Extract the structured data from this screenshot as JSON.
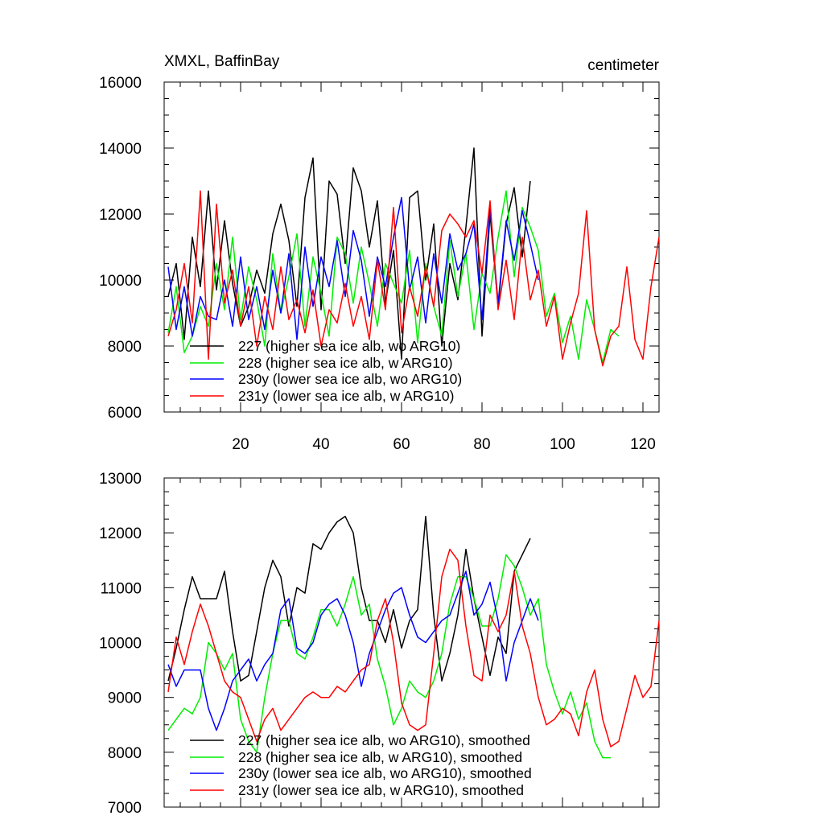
{
  "charts": [
    {
      "title": "XMXL, BaffinBay",
      "units": "centimeter",
      "type": "line",
      "xlim": [
        1,
        124
      ],
      "ylim": [
        6000,
        16000
      ],
      "ytick_labels": [
        "6000",
        "8000",
        "10000",
        "12000",
        "14000",
        "16000"
      ],
      "yticks": [
        6000,
        8000,
        10000,
        12000,
        14000,
        16000
      ],
      "xtick_labels": [
        "20",
        "40",
        "60",
        "80",
        "100",
        "120"
      ],
      "xticks": [
        20,
        40,
        60,
        80,
        100,
        120
      ],
      "legend": [
        "227 (higher sea ice alb, wo ARG10)",
        "228 (higher sea ice alb, w ARG10)",
        "230y (lower sea ice alb, wo ARG10)",
        "231y (lower sea ice alb, w ARG10)"
      ]
    },
    {
      "title": "",
      "units": "",
      "type": "line",
      "xlim": [
        1,
        124
      ],
      "ylim": [
        7000,
        13000
      ],
      "ytick_labels": [
        "7000",
        "8000",
        "9000",
        "10000",
        "11000",
        "12000",
        "13000"
      ],
      "yticks": [
        7000,
        8000,
        9000,
        10000,
        11000,
        12000,
        13000
      ],
      "xtick_labels": [],
      "xticks": [
        20,
        40,
        60,
        80,
        100,
        120
      ],
      "legend": [
        "227 (higher sea ice alb, wo ARG10), smoothed",
        "228 (higher sea ice alb, w ARG10), smoothed",
        "230y (lower sea ice alb, wo ARG10), smoothed",
        "231y (lower sea ice alb, w ARG10), smoothed"
      ]
    }
  ],
  "chart_data": [
    {
      "type": "line",
      "title": "XMXL, BaffinBay",
      "ylabel": "centimeter",
      "xlim": [
        1,
        124
      ],
      "ylim": [
        6000,
        16000
      ],
      "series": [
        {
          "name": "227 (higher sea ice alb, wo ARG10)",
          "color": "#000000",
          "x": [
            2,
            4,
            6,
            8,
            10,
            12,
            14,
            16,
            18,
            20,
            22,
            24,
            26,
            28,
            30,
            32,
            34,
            36,
            38,
            40,
            42,
            44,
            46,
            48,
            50,
            52,
            54,
            56,
            58,
            60,
            62,
            64,
            66,
            68,
            70,
            72,
            74,
            76,
            78,
            80,
            82,
            84,
            86,
            88,
            90,
            92
          ],
          "values": [
            9500,
            10500,
            8200,
            11300,
            9800,
            12700,
            9700,
            11800,
            9900,
            8600,
            9200,
            10300,
            9600,
            11400,
            12300,
            11200,
            9200,
            12500,
            13700,
            9100,
            13000,
            12600,
            10500,
            13400,
            12700,
            11000,
            12400,
            9300,
            10900,
            7600,
            12500,
            12700,
            10000,
            11700,
            8000,
            10500,
            9400,
            11600,
            14000,
            8300,
            12000,
            9200,
            11700,
            12800,
            10700,
            13000
          ]
        },
        {
          "name": "228 (higher sea ice alb, w ARG10)",
          "color": "#00ee00",
          "x": [
            2,
            4,
            6,
            8,
            10,
            12,
            14,
            16,
            18,
            20,
            22,
            24,
            26,
            28,
            30,
            32,
            34,
            36,
            38,
            40,
            42,
            44,
            46,
            48,
            50,
            52,
            54,
            56,
            58,
            60,
            62,
            64,
            66,
            68,
            70,
            72,
            74,
            76,
            78,
            80,
            82,
            84,
            86,
            88,
            90,
            92,
            94,
            96,
            98,
            100,
            102,
            104,
            106,
            108,
            110,
            112,
            114
          ],
          "values": [
            8400,
            9800,
            7800,
            8300,
            9200,
            8600,
            10500,
            9100,
            11300,
            8800,
            10400,
            9400,
            8000,
            10800,
            9000,
            10100,
            11400,
            8600,
            10700,
            9600,
            8300,
            11300,
            10800,
            9300,
            11000,
            9900,
            8600,
            10500,
            9900,
            9300,
            10900,
            8100,
            10500,
            9200,
            8300,
            11200,
            9500,
            10800,
            8500,
            10200,
            9600,
            11300,
            12700,
            10100,
            12200,
            11600,
            10900,
            8900,
            9600,
            8100,
            8900,
            7600,
            9400,
            8500,
            7500,
            8500,
            8300
          ]
        },
        {
          "name": "230y (lower sea ice alb, wo ARG10)",
          "color": "#0000ff",
          "x": [
            2,
            4,
            6,
            8,
            10,
            12,
            14,
            16,
            18,
            20,
            22,
            24,
            26,
            28,
            30,
            32,
            34,
            36,
            38,
            40,
            42,
            44,
            46,
            48,
            50,
            52,
            54,
            56,
            58,
            60,
            62,
            64,
            66,
            68,
            70,
            72,
            74,
            76,
            78,
            80,
            82,
            84,
            86,
            88,
            90,
            92,
            94
          ],
          "values": [
            10400,
            8500,
            9800,
            8300,
            9500,
            8900,
            8800,
            10000,
            8600,
            10700,
            8800,
            9800,
            8500,
            10300,
            9000,
            10800,
            8200,
            11000,
            9200,
            10700,
            9800,
            11200,
            9500,
            11500,
            10600,
            8900,
            10700,
            9800,
            11300,
            12500,
            9700,
            10700,
            8700,
            10800,
            9300,
            11400,
            10300,
            10800,
            11700,
            8800,
            12200,
            9300,
            11800,
            10600,
            12100,
            11100,
            10000
          ]
        },
        {
          "name": "231y (lower sea ice alb, w ARG10)",
          "color": "#ff0000",
          "x": [
            2,
            4,
            6,
            8,
            10,
            12,
            14,
            16,
            18,
            20,
            22,
            24,
            26,
            28,
            30,
            32,
            34,
            36,
            38,
            40,
            42,
            44,
            46,
            48,
            50,
            52,
            54,
            56,
            58,
            60,
            62,
            64,
            66,
            68,
            70,
            72,
            74,
            76,
            78,
            80,
            82,
            84,
            86,
            88,
            90,
            92,
            94,
            96,
            98,
            100,
            102,
            104,
            106,
            108,
            110,
            112,
            114,
            116,
            118,
            120,
            122,
            124
          ],
          "values": [
            8300,
            9100,
            10500,
            8700,
            12700,
            7600,
            12300,
            9300,
            10300,
            8600,
            9800,
            8000,
            9500,
            8500,
            10400,
            8800,
            9400,
            8400,
            9700,
            8000,
            9100,
            8700,
            9900,
            8600,
            9500,
            8200,
            10600,
            9100,
            12200,
            8400,
            9800,
            8900,
            10400,
            9200,
            11500,
            12000,
            11700,
            11300,
            11800,
            10200,
            12400,
            9100,
            10600,
            8800,
            11300,
            9400,
            10300,
            8600,
            9500,
            7600,
            8700,
            9600,
            12100,
            8500,
            7400,
            8300,
            8600,
            10400,
            8200,
            7600,
            9800,
            11300
          ]
        }
      ]
    },
    {
      "type": "line",
      "title": "",
      "xlim": [
        1,
        124
      ],
      "ylim": [
        7000,
        13000
      ],
      "series": [
        {
          "name": "227 (higher sea ice alb, wo ARG10), smoothed",
          "color": "#000000",
          "x": [
            2,
            4,
            6,
            8,
            10,
            12,
            14,
            16,
            18,
            20,
            22,
            24,
            26,
            28,
            30,
            32,
            34,
            36,
            38,
            40,
            42,
            44,
            46,
            48,
            50,
            52,
            54,
            56,
            58,
            60,
            62,
            64,
            66,
            68,
            70,
            72,
            74,
            76,
            78,
            80,
            82,
            84,
            86,
            88,
            90,
            92
          ],
          "values": [
            9300,
            9900,
            10600,
            11200,
            10800,
            10800,
            10800,
            11300,
            10200,
            9300,
            9400,
            10200,
            11000,
            11500,
            11200,
            10300,
            11000,
            10900,
            11800,
            11700,
            12000,
            12200,
            12300,
            12000,
            11000,
            10400,
            10400,
            10000,
            10600,
            9900,
            10400,
            10600,
            12300,
            10500,
            9300,
            9800,
            10500,
            11700,
            10800,
            10100,
            9400,
            10100,
            9800,
            11300,
            11600,
            11900
          ]
        },
        {
          "name": "228 (higher sea ice alb, w ARG10), smoothed",
          "color": "#00ee00",
          "x": [
            2,
            4,
            6,
            8,
            10,
            12,
            14,
            16,
            18,
            20,
            22,
            24,
            26,
            28,
            30,
            32,
            34,
            36,
            38,
            40,
            42,
            44,
            46,
            48,
            50,
            52,
            54,
            56,
            58,
            60,
            62,
            64,
            66,
            68,
            70,
            72,
            74,
            76,
            78,
            80,
            82,
            84,
            86,
            88,
            90,
            92,
            94,
            96,
            98,
            100,
            102,
            104,
            106,
            108,
            110,
            112
          ],
          "values": [
            8400,
            8600,
            8800,
            8700,
            9000,
            10000,
            9800,
            9500,
            9800,
            8600,
            8200,
            8000,
            9000,
            9800,
            10400,
            10400,
            9800,
            9700,
            10100,
            10600,
            10600,
            10300,
            10700,
            11200,
            10500,
            10700,
            9700,
            9200,
            8500,
            8800,
            9300,
            9100,
            9000,
            9300,
            9800,
            10700,
            11200,
            11200,
            10800,
            10300,
            10300,
            10800,
            11600,
            11400,
            11000,
            10500,
            10800,
            9600,
            9100,
            8700,
            9100,
            8600,
            8900,
            8200,
            7900,
            7900
          ]
        },
        {
          "name": "230y (lower sea ice alb, wo ARG10), smoothed",
          "color": "#0000ff",
          "x": [
            2,
            4,
            6,
            8,
            10,
            12,
            14,
            16,
            18,
            20,
            22,
            24,
            26,
            28,
            30,
            32,
            34,
            36,
            38,
            40,
            42,
            44,
            46,
            48,
            50,
            52,
            54,
            56,
            58,
            60,
            62,
            64,
            66,
            68,
            70,
            72,
            74,
            76,
            78,
            80,
            82,
            84,
            86,
            88,
            90,
            92,
            94
          ],
          "values": [
            9600,
            9200,
            9500,
            9500,
            9500,
            8800,
            8400,
            8800,
            9300,
            9500,
            9700,
            9300,
            9600,
            9800,
            10600,
            10800,
            9900,
            9800,
            10000,
            10500,
            10700,
            10800,
            10500,
            10000,
            9200,
            9800,
            10200,
            10600,
            10900,
            11000,
            10500,
            10100,
            10000,
            10200,
            10400,
            10500,
            10900,
            11300,
            10500,
            10700,
            11100,
            10400,
            9300,
            10000,
            10400,
            10800,
            10400
          ]
        },
        {
          "name": "231y (lower sea ice alb, w ARG10), smoothed",
          "color": "#ff0000",
          "x": [
            2,
            4,
            6,
            8,
            10,
            12,
            14,
            16,
            18,
            20,
            22,
            24,
            26,
            28,
            30,
            32,
            34,
            36,
            38,
            40,
            42,
            44,
            46,
            48,
            50,
            52,
            54,
            56,
            58,
            60,
            62,
            64,
            66,
            68,
            70,
            72,
            74,
            76,
            78,
            80,
            82,
            84,
            86,
            88,
            90,
            92,
            94,
            96,
            98,
            100,
            102,
            104,
            106,
            108,
            110,
            112,
            114,
            116,
            118,
            120,
            122,
            124
          ],
          "values": [
            9100,
            10100,
            9600,
            10200,
            10700,
            10300,
            9800,
            9300,
            9100,
            9000,
            8600,
            8200,
            8600,
            8800,
            8400,
            8600,
            8800,
            9000,
            9100,
            9000,
            9000,
            9200,
            9100,
            9300,
            9500,
            9600,
            10400,
            10800,
            10000,
            8900,
            8500,
            8400,
            8500,
            9800,
            11200,
            11700,
            11500,
            10300,
            9400,
            9300,
            10500,
            10200,
            10500,
            11300,
            10300,
            9800,
            9000,
            8500,
            8600,
            8800,
            8700,
            8300,
            9100,
            9500,
            8600,
            8100,
            8200,
            8800,
            9400,
            9000,
            9200,
            10400
          ]
        }
      ]
    }
  ]
}
